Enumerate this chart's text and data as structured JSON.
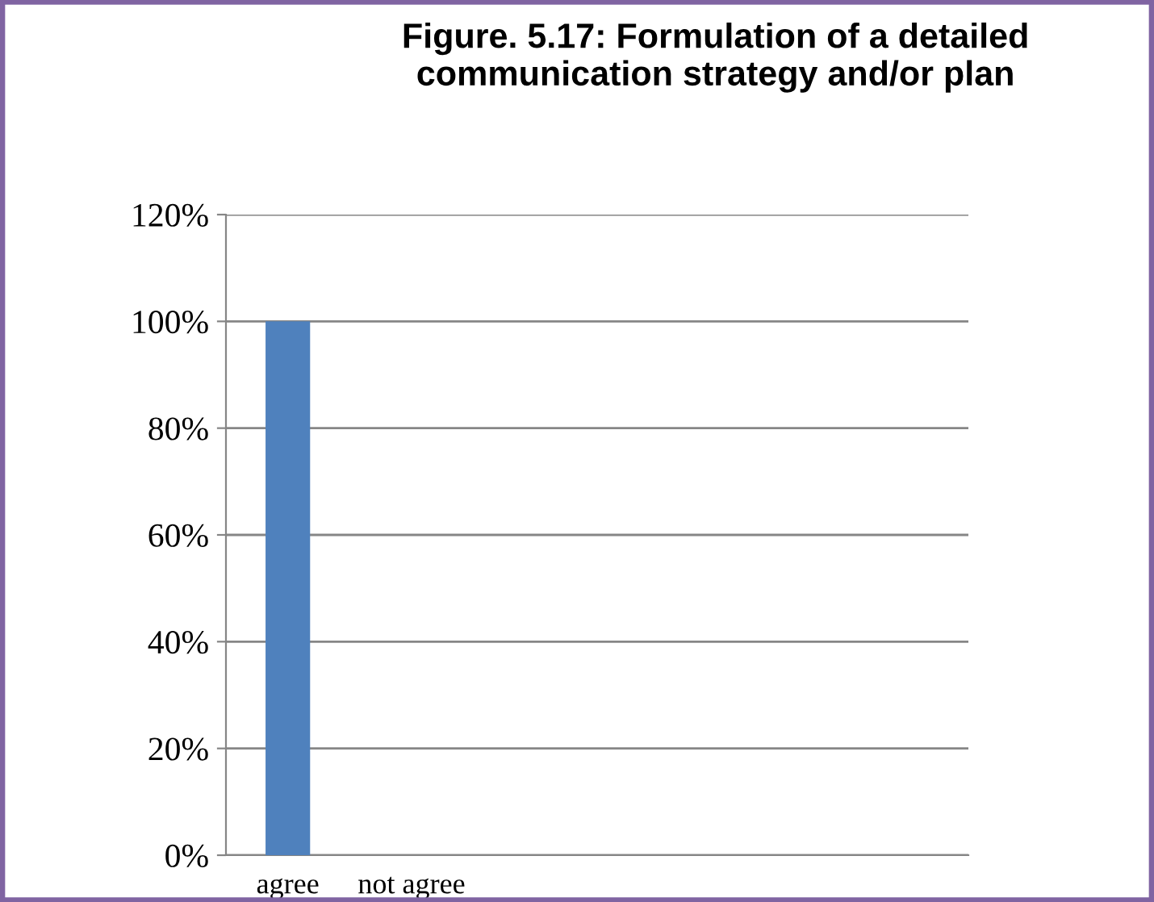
{
  "chart_data": {
    "type": "bar",
    "title": "Figure. 5.17: Formulation of a detailed\ncommunication strategy and/or plan",
    "categories": [
      "agree",
      "not agree",
      null,
      null,
      null,
      null
    ],
    "values": [
      100,
      0,
      null,
      null,
      null,
      null
    ],
    "color": "#4f81bd",
    "ylim": [
      0,
      120
    ],
    "yticks": [
      {
        "value": 0,
        "label": "0%"
      },
      {
        "value": 20,
        "label": "20%"
      },
      {
        "value": 40,
        "label": "40%"
      },
      {
        "value": 60,
        "label": "60%"
      },
      {
        "value": 80,
        "label": "80%"
      },
      {
        "value": 100,
        "label": "100%"
      },
      {
        "value": 120,
        "label": "120%"
      }
    ],
    "grid": "y"
  }
}
